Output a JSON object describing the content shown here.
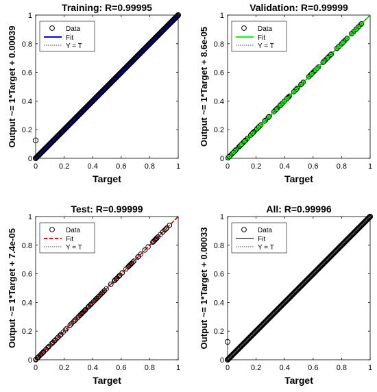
{
  "colors": {
    "point_outline": "#000000",
    "identity_line": "#000000",
    "axis": "#000000"
  },
  "chart_data": [
    {
      "type": "scatter",
      "title": "Training: R=0.99995",
      "xlabel": "Target",
      "ylabel": "Output ~= 1*Target + 0.00039",
      "xlim": [
        0,
        1
      ],
      "ylim": [
        0,
        1
      ],
      "xticks": [
        "0",
        "0.2",
        "0.4",
        "0.6",
        "0.8",
        "1"
      ],
      "yticks": [
        "0",
        "0.2",
        "0.4",
        "0.6",
        "0.8",
        "1"
      ],
      "fit": {
        "slope": 1,
        "intercept": 0.00039,
        "color": "#0000ff"
      },
      "legend": {
        "position": "top-left",
        "entries": [
          "Data",
          "Fit",
          "Y = T"
        ]
      },
      "point_fill": "none",
      "density": "dense",
      "points": [
        [
          0,
          0.125
        ]
      ]
    },
    {
      "type": "scatter",
      "title": "Validation: R=0.99999",
      "xlabel": "Target",
      "ylabel": "Output ~= 1*Target + 8.6e-05",
      "xlim": [
        0,
        1
      ],
      "ylim": [
        0,
        1
      ],
      "xticks": [
        "0",
        "0.2",
        "0.4",
        "0.6",
        "0.8",
        "1"
      ],
      "yticks": [
        "0",
        "0.2",
        "0.4",
        "0.6",
        "0.8",
        "1"
      ],
      "fit": {
        "slope": 1,
        "intercept": 8.6e-05,
        "color": "#00ff00"
      },
      "legend": {
        "position": "top-left",
        "entries": [
          "Data",
          "Fit",
          "Y = T"
        ]
      },
      "point_fill": "#00ff00",
      "density": "sparse",
      "points": []
    },
    {
      "type": "scatter",
      "title": "Test: R=0.99999",
      "xlabel": "Target",
      "ylabel": "Output ~= 1*Target + 7.4e-05",
      "xlim": [
        0,
        1
      ],
      "ylim": [
        0,
        1
      ],
      "xticks": [
        "0",
        "0.2",
        "0.4",
        "0.6",
        "0.8",
        "1"
      ],
      "yticks": [
        "0",
        "0.2",
        "0.4",
        "0.6",
        "0.8",
        "1"
      ],
      "fit": {
        "slope": 1,
        "intercept": 7.4e-05,
        "color": "#ff0000",
        "dashed": true
      },
      "legend": {
        "position": "top-left",
        "entries": [
          "Data",
          "Fit",
          "Y = T"
        ]
      },
      "point_fill": "none",
      "density": "sparse",
      "points": []
    },
    {
      "type": "scatter",
      "title": "All: R=0.99996",
      "xlabel": "Target",
      "ylabel": "Output ~= 1*Target + 0.00033",
      "xlim": [
        0,
        1
      ],
      "ylim": [
        0,
        1
      ],
      "xticks": [
        "0",
        "0.2",
        "0.4",
        "0.6",
        "0.8",
        "1"
      ],
      "yticks": [
        "0",
        "0.2",
        "0.4",
        "0.6",
        "0.8",
        "1"
      ],
      "fit": {
        "slope": 1,
        "intercept": 0.00033,
        "color": "#707070"
      },
      "legend": {
        "position": "top-left",
        "entries": [
          "Data",
          "Fit",
          "Y = T"
        ]
      },
      "point_fill": "none",
      "density": "dense",
      "points": [
        [
          0,
          0.125
        ]
      ]
    }
  ]
}
